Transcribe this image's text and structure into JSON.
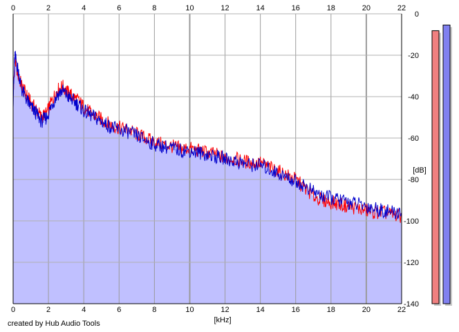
{
  "chart_data": {
    "type": "line",
    "xlabel": "[kHz]",
    "ylabel": "[dB]",
    "xlim": [
      0,
      22
    ],
    "ylim": [
      -140,
      0
    ],
    "x_ticks": [
      0,
      2,
      4,
      6,
      8,
      10,
      12,
      14,
      16,
      18,
      20,
      22
    ],
    "y_ticks": [
      0,
      -20,
      -40,
      -60,
      -80,
      -100,
      -120,
      -140
    ],
    "x_tick_labels": [
      "0",
      "2",
      "4",
      "6",
      "8",
      "10",
      "12",
      "14",
      "16",
      "18",
      "20",
      "22"
    ],
    "y_tick_labels": [
      "0",
      "-20",
      "-40",
      "-60",
      "-80",
      "-100",
      "-120",
      "-140"
    ],
    "grid": true,
    "x_ticks_top": true,
    "series": [
      {
        "color": "#ff0000",
        "x": [
          0,
          0.1,
          0.3,
          0.5,
          0.8,
          1.0,
          1.3,
          1.6,
          1.9,
          2.2,
          2.5,
          2.8,
          3.1,
          3.4,
          3.7,
          4.0,
          4.4,
          4.8,
          5.2,
          5.6,
          6.0,
          6.5,
          7.0,
          7.5,
          8.0,
          8.5,
          9.0,
          9.5,
          10.0,
          10.5,
          11.0,
          11.5,
          12.0,
          12.5,
          13.0,
          13.5,
          14.0,
          14.5,
          15.0,
          15.5,
          16.0,
          16.5,
          17.0,
          17.5,
          18.0,
          18.5,
          19.0,
          19.5,
          20.0,
          20.5,
          21.0,
          21.5,
          22.0
        ],
        "y": [
          -40,
          -22,
          -30,
          -35,
          -40,
          -43,
          -46,
          -50,
          -48,
          -42,
          -37,
          -35,
          -38,
          -40,
          -42,
          -45,
          -48,
          -50,
          -52,
          -54,
          -55,
          -56,
          -58,
          -60,
          -62,
          -63,
          -64,
          -65,
          -65,
          -66,
          -67,
          -68,
          -70,
          -70,
          -71,
          -72,
          -72,
          -74,
          -76,
          -78,
          -80,
          -84,
          -88,
          -90,
          -91,
          -92,
          -93,
          -94,
          -95,
          -96,
          -96,
          -97,
          -98
        ]
      },
      {
        "color": "#0000cc",
        "x": [
          0,
          0.1,
          0.3,
          0.5,
          0.8,
          1.0,
          1.3,
          1.6,
          1.9,
          2.2,
          2.5,
          2.8,
          3.1,
          3.4,
          3.7,
          4.0,
          4.4,
          4.8,
          5.2,
          5.6,
          6.0,
          6.5,
          7.0,
          7.5,
          8.0,
          8.5,
          9.0,
          9.5,
          10.0,
          10.5,
          11.0,
          11.5,
          12.0,
          12.5,
          13.0,
          13.5,
          14.0,
          14.5,
          15.0,
          15.5,
          16.0,
          16.5,
          17.0,
          17.5,
          18.0,
          18.5,
          19.0,
          19.5,
          20.0,
          20.5,
          21.0,
          21.5,
          22.0
        ],
        "y": [
          -42,
          -20,
          -28,
          -37,
          -42,
          -45,
          -48,
          -52,
          -50,
          -44,
          -39,
          -37,
          -40,
          -42,
          -44,
          -47,
          -49,
          -51,
          -53,
          -55,
          -56,
          -57,
          -59,
          -61,
          -63,
          -64,
          -65,
          -66,
          -66,
          -67,
          -68,
          -69,
          -70,
          -71,
          -72,
          -73,
          -73,
          -75,
          -77,
          -79,
          -81,
          -83,
          -86,
          -88,
          -89,
          -90,
          -91,
          -92,
          -93,
          -94,
          -95,
          -96,
          -96
        ]
      }
    ],
    "fill_color": "#c0c0ff",
    "meters": [
      {
        "color": "#f08080",
        "level": 0.96
      },
      {
        "color": "#8080f0",
        "level": 0.98
      }
    ]
  },
  "footer": "created by Hub Audio Tools"
}
